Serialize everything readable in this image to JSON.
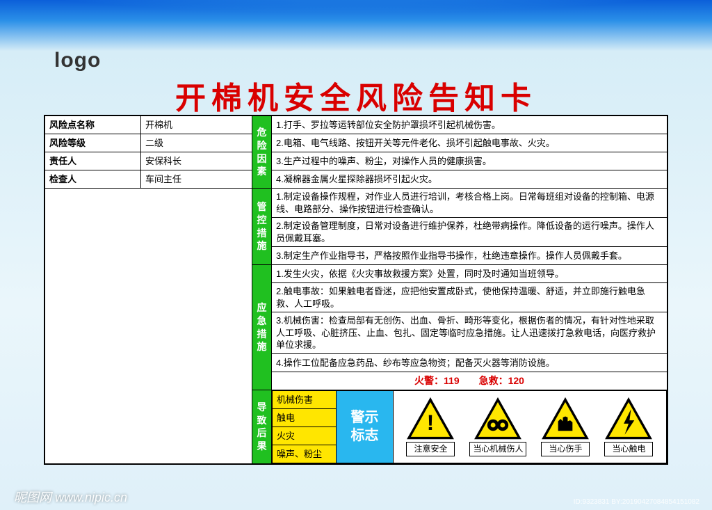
{
  "logo": "logo",
  "title": "开棉机安全风险告知卡",
  "info_rows": [
    {
      "label": "风险点名称",
      "value": "开棉机"
    },
    {
      "label": "风险等级",
      "value": "二级"
    },
    {
      "label": "责任人",
      "value": "安保科长"
    },
    {
      "label": "检查人",
      "value": "车间主任"
    }
  ],
  "hazard_header": "危险因素",
  "hazards": [
    "1.打手、罗拉等运转部位安全防护罩损坏引起机械伤害。",
    "2.电箱、电气线路、按钮开关等元件老化、损坏引起触电事故、火灾。",
    "3.生产过程中的噪声、粉尘，对操作人员的健康损害。",
    "4.凝棉器金属火星探除器损坏引起火灾。"
  ],
  "control_header": "管控措施",
  "controls": [
    "1.制定设备操作规程，对作业人员进行培训，考核合格上岗。日常每班组对设备的控制箱、电源线、电路部分、操作按钮进行检查确认。",
    "2.制定设备管理制度，日常对设备进行维护保养，杜绝带病操作。降低设备的运行噪声。操作人员佩戴耳塞。",
    "3.制定生产作业指导书，严格按照作业指导书操作，杜绝违章操作。操作人员佩戴手套。"
  ],
  "emergency_header": "应急措施",
  "emergencies": [
    "1.发生火灾，依据《火灾事故救援方案》处置，同时及时通知当班领导。",
    "2.触电事故：如果触电者昏迷，应把他安置成卧式，使他保持温暖、舒适，并立即施行触电急救、人工呼吸。",
    "3.机械伤害：检查局部有无创伤、出血、骨折、畸形等变化，根据伤者的情况，有针对性地采取人工呼吸、心脏挤压、止血、包扎、固定等临时应急措施。让人迅速拨打急救电话，向医疗救护单位求援。",
    "4.操作工位配备应急药品、纱布等应急物资；配备灭火器等消防设施。"
  ],
  "hotline": "火警：119　　急救：120",
  "consequence_header": "导致后果",
  "consequences": [
    "机械伤害",
    "触电",
    "火灾",
    "噪声、粉尘"
  ],
  "warn_label": "警示标志",
  "signs": [
    {
      "caption": "注意安全"
    },
    {
      "caption": "当心机械伤人"
    },
    {
      "caption": "当心伤手"
    },
    {
      "caption": "当心触电"
    }
  ],
  "watermark": "昵图网  www.nipic.cn",
  "wm_id": "ID:9323831 BY:20190427084854151082",
  "colors": {
    "title": "#d90000",
    "section_header_bg": "#20c020",
    "consequence_bg": "#ffe600",
    "warn_label_bg": "#29b7ef",
    "sign_fill": "#ffe600",
    "sign_stroke": "#000000"
  }
}
